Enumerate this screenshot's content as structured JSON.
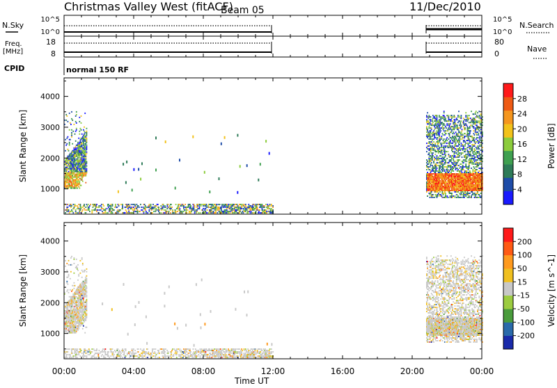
{
  "header": {
    "station": "Christmas Valley West (fitACF)",
    "beam": "Beam 05",
    "date": "11/Dec/2010"
  },
  "nsky_panel": {
    "left_label": "N.Sky",
    "left_ticks": [
      "10^5",
      "10^0"
    ],
    "right_ticks": [
      "10^5",
      "10^0"
    ],
    "right_label": "N.Search"
  },
  "freq_panel": {
    "left_label_line1": "Freq.",
    "left_label_line2": "[MHz]",
    "left_ticks": [
      "18",
      "8"
    ],
    "right_ticks": [
      "80",
      "0"
    ],
    "right_label": "Nave"
  },
  "cpid_panel": {
    "label": "CPID",
    "program": "normal 150 RF"
  },
  "colors": {
    "power_scale": [
      "#1a1aff",
      "#1e4ca8",
      "#2e7b58",
      "#3fa050",
      "#8ccc3c",
      "#f2c21a",
      "#f5961e",
      "#ee5a14",
      "#ff1a1a"
    ],
    "velocity_scale": [
      "#ff1a1a",
      "#ff5a14",
      "#ff9a1e",
      "#f0c020",
      "#c8c8c8",
      "#9ccc40",
      "#4a9c3c",
      "#2a6aaa",
      "#1a2aaa"
    ]
  },
  "chart_data": [
    {
      "type": "heatmap",
      "name": "power",
      "ylabel": "Slant Range [km]",
      "yticks": [
        "1000",
        "2000",
        "3000",
        "4000"
      ],
      "ylim": [
        180,
        4600
      ],
      "xlim_hours": [
        0,
        24
      ],
      "colorbar_label": "Power [dB]",
      "colorbar_ticks": [
        "4",
        "8",
        "12",
        "16",
        "20",
        "24",
        "28"
      ],
      "colorbar_range": [
        0,
        32
      ],
      "regions": [
        {
          "t0": 0.0,
          "t1": 1.3,
          "r0": 1000,
          "r1": 3500,
          "level": "mixed"
        },
        {
          "t0": 0.0,
          "t1": 12.0,
          "r0": 200,
          "r1": 500,
          "level": "low"
        },
        {
          "t0": 20.8,
          "t1": 24.0,
          "r0": 700,
          "r1": 3500,
          "level": "mixed"
        }
      ]
    },
    {
      "type": "heatmap",
      "name": "velocity",
      "ylabel": "Slant Range [km]",
      "yticks": [
        "1000",
        "2000",
        "3000",
        "4000"
      ],
      "ylim": [
        180,
        4600
      ],
      "xlim_hours": [
        0,
        24
      ],
      "colorbar_label": "Velocity [m s^-1]",
      "colorbar_ticks": [
        "-200",
        "-100",
        "-50",
        "-15",
        "15",
        "50",
        "100",
        "200"
      ],
      "colorbar_range": [
        -250,
        250
      ],
      "regions": [
        {
          "t0": 0.0,
          "t1": 1.3,
          "r0": 1000,
          "r1": 3500,
          "level": "slow"
        },
        {
          "t0": 0.0,
          "t1": 12.0,
          "r0": 200,
          "r1": 500,
          "level": "slow"
        },
        {
          "t0": 20.8,
          "t1": 24.0,
          "r0": 700,
          "r1": 3500,
          "level": "slow"
        }
      ]
    }
  ],
  "x_axis": {
    "label": "Time UT",
    "ticks": [
      "00:00",
      "04:00",
      "08:00",
      "12:00",
      "16:00",
      "20:00",
      "00:00"
    ],
    "tick_hours": [
      0,
      4,
      8,
      12,
      16,
      20,
      24
    ]
  }
}
